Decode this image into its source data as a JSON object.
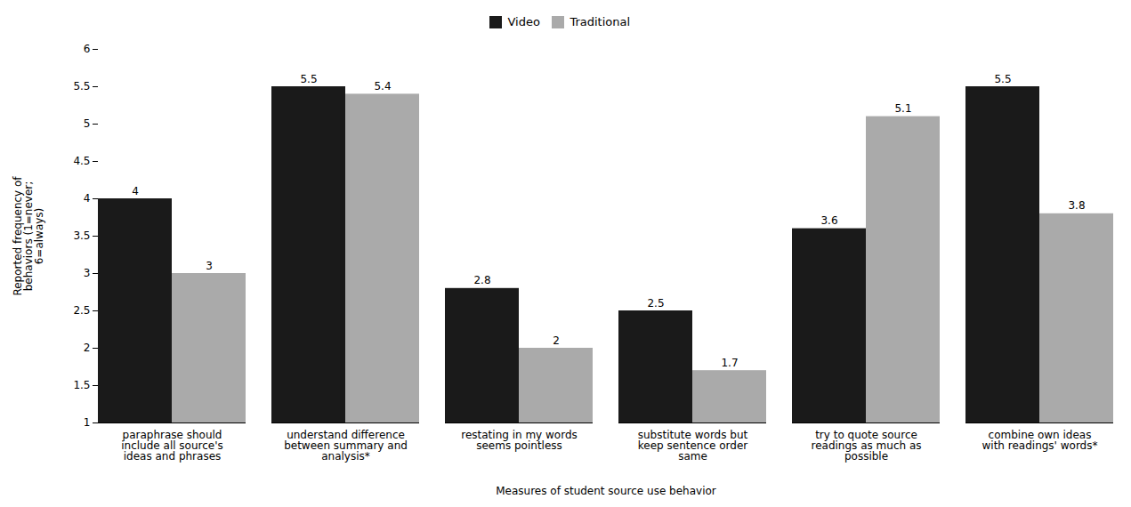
{
  "chart_data": {
    "type": "bar",
    "categories": [
      "paraphrase should\ninclude all source's\nideas and phrases",
      "understand difference\nbetween summary and\nanalysis*",
      "restating in my words\nseems pointless",
      "substitute words but\nkeep sentence order\nsame",
      "try to quote source\nreadings as much as\npossible",
      "combine own ideas\nwith readings' words*"
    ],
    "series": [
      {
        "name": "Video",
        "color": "#1a1a1a",
        "values": [
          4.0,
          5.5,
          2.8,
          2.5,
          3.6,
          5.5
        ]
      },
      {
        "name": "Traditional",
        "color": "#aaaaaa",
        "values": [
          3.0,
          5.4,
          2.0,
          1.7,
          5.1,
          3.8
        ]
      }
    ],
    "xlabel": "Measures of student source use behavior",
    "ylabel": "Reported frequency of\nbehaviors (1=never;\n6=always)",
    "ylim": [
      1,
      6
    ],
    "yticks": [
      1,
      1.5,
      2,
      2.5,
      3,
      3.5,
      4,
      4.5,
      5,
      5.5,
      6
    ],
    "data_labels": true,
    "grid": false,
    "legend": "top"
  }
}
